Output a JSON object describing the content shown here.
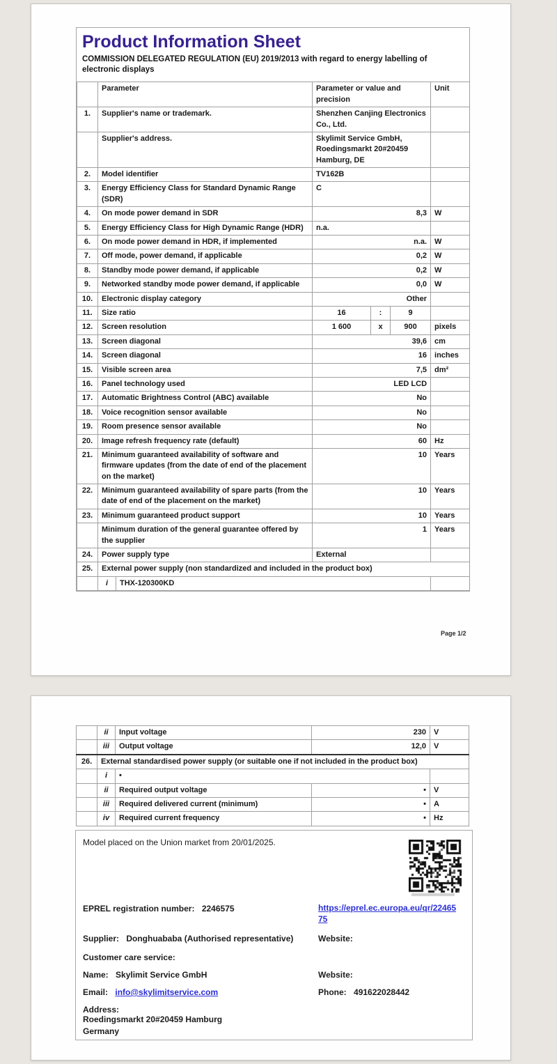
{
  "document": {
    "title": "Product Information Sheet",
    "subtitle": "COMMISSION DELEGATED REGULATION (EU) 2019/2013 with regard to energy labelling of electronic displays",
    "page_footer": "Page 1/2"
  },
  "colors": {
    "title_purple": "#38218f",
    "link_blue": "#2b2fd4",
    "table_border": "#a0a0a0",
    "page_background": "#e9e6e2"
  },
  "table": {
    "headers": {
      "parameter": "Parameter",
      "value": "Parameter or value and precision",
      "unit": "Unit"
    },
    "rows_page1": [
      {
        "num": "1.",
        "param": "Supplier's name or trademark.",
        "value": "Shenzhen Canjing Electronics Co., Ltd.",
        "align": "left",
        "unit": ""
      },
      {
        "num": "",
        "param": "Supplier's address.",
        "value": "Skylimit Service GmbH, Roedingsmarkt 20#20459 Hamburg, DE",
        "align": "left",
        "unit": ""
      },
      {
        "num": "2.",
        "param": "Model identifier",
        "value": "TV162B",
        "align": "left",
        "unit": ""
      },
      {
        "num": "3.",
        "param": "Energy Efficiency Class for Standard Dynamic Range (SDR)",
        "value": "C",
        "align": "left",
        "unit": ""
      },
      {
        "num": "4.",
        "param": "On mode power demand in SDR",
        "value": "8,3",
        "align": "right",
        "unit": "W"
      },
      {
        "num": "5.",
        "param": "Energy Efficiency Class for High Dynamic Range (HDR)",
        "value": "n.a.",
        "align": "left",
        "unit": ""
      },
      {
        "num": "6.",
        "param": "On mode power demand in HDR, if implemented",
        "value": "n.a.",
        "align": "right",
        "unit": "W"
      },
      {
        "num": "7.",
        "param": "Off mode, power demand, if applicable",
        "value": "0,2",
        "align": "right",
        "unit": "W"
      },
      {
        "num": "8.",
        "param": "Standby mode power demand, if applicable",
        "value": "0,2",
        "align": "right",
        "unit": "W"
      },
      {
        "num": "9.",
        "param": "Networked standby mode power demand, if applicable",
        "value": "0,0",
        "align": "right",
        "unit": "W"
      },
      {
        "num": "10.",
        "param": "Electronic display category",
        "value": "Other",
        "align": "right",
        "unit": ""
      },
      {
        "num": "11.",
        "param": "Size ratio",
        "split": [
          "16",
          ":",
          "9"
        ],
        "unit": ""
      },
      {
        "num": "12.",
        "param": "Screen resolution",
        "split": [
          "1 600",
          "x",
          "900"
        ],
        "unit": "pixels"
      },
      {
        "num": "13.",
        "param": "Screen diagonal",
        "value": "39,6",
        "align": "right",
        "unit": "cm"
      },
      {
        "num": "14.",
        "param": "Screen diagonal",
        "value": "16",
        "align": "right",
        "unit": "inches"
      },
      {
        "num": "15.",
        "param": "Visible screen area",
        "value": "7,5",
        "align": "right",
        "unit": "dm²"
      },
      {
        "num": "16.",
        "param": "Panel technology used",
        "value": "LED LCD",
        "align": "right",
        "unit": ""
      },
      {
        "num": "17.",
        "param": "Automatic Brightness Control (ABC) available",
        "value": "No",
        "align": "right",
        "unit": ""
      },
      {
        "num": "18.",
        "param": "Voice recognition sensor available",
        "value": "No",
        "align": "right",
        "unit": ""
      },
      {
        "num": "19.",
        "param": "Room presence sensor available",
        "value": "No",
        "align": "right",
        "unit": ""
      },
      {
        "num": "20.",
        "param": "Image refresh frequency rate (default)",
        "value": "60",
        "align": "right",
        "unit": "Hz"
      },
      {
        "num": "21.",
        "param": "Minimum guaranteed availability of software and firmware updates (from the date of end of the placement on the market)",
        "value": "10",
        "align": "right",
        "unit": "Years"
      },
      {
        "num": "22.",
        "param": "Minimum guaranteed availability of spare parts (from the date of end of the placement on the market)",
        "value": "10",
        "align": "right",
        "unit": "Years"
      },
      {
        "num": "23.",
        "param": "Minimum guaranteed product support",
        "value": "10",
        "align": "right",
        "unit": "Years"
      },
      {
        "num": "",
        "param": "Minimum duration of the general guarantee offered by the supplier",
        "value": "1",
        "align": "right",
        "unit": "Years"
      },
      {
        "num": "24.",
        "param": "Power supply type",
        "value": "External",
        "align": "left",
        "unit": ""
      },
      {
        "num": "25.",
        "span": "External power supply (non standardized and included in the product box)"
      },
      {
        "num": "",
        "sub": "i",
        "merged": true,
        "param": "THX-120300KD",
        "unit": ""
      }
    ],
    "rows_page2": [
      {
        "num": "",
        "numHidden": true,
        "sub": "ii",
        "param": "Input voltage",
        "value": "230",
        "align": "right",
        "unit": "V"
      },
      {
        "num": "",
        "numHidden": true,
        "sub": "iii",
        "param": "Output voltage",
        "value": "12,0",
        "align": "right",
        "unit": "V"
      },
      {
        "num": "26.",
        "darkTop": true,
        "span": "External standardised power supply (or suitable one if not included in the product box)"
      },
      {
        "num": "",
        "sub": "i",
        "darkLeft": true,
        "merged": true,
        "param": "•",
        "unit": ""
      },
      {
        "num": "",
        "sub": "ii",
        "darkLeft": true,
        "param": "Required output voltage",
        "value": "•",
        "align": "right",
        "unit": "V"
      },
      {
        "num": "",
        "sub": "iii",
        "darkLeft": true,
        "param": "Required delivered current (minimum)",
        "value": "•",
        "align": "right",
        "unit": "A"
      },
      {
        "num": "",
        "sub": "iv",
        "darkLeft": true,
        "param": "Required current frequency",
        "value": "•",
        "align": "right",
        "unit": "Hz"
      }
    ]
  },
  "registration": {
    "market_date_line": "Model placed on the Union market from 20/01/2025.",
    "eprel_label": "EPREL registration number:",
    "eprel_number": "2246575",
    "eprel_url": "https://eprel.ec.europa.eu/qr/2246575",
    "supplier_label": "Supplier:",
    "supplier_value": "Donghuababa (Authorised representative)",
    "website_label": "Website:",
    "customer_care_heading": "Customer care service:",
    "name_label": "Name:",
    "name_value": "Skylimit Service GmbH",
    "email_label": "Email:",
    "email_value": "info@skylimitservice.com",
    "phone_label": "Phone:",
    "phone_value": "491622028442",
    "address_label": "Address:",
    "address_line1": "Roedingsmarkt 20#20459 Hamburg",
    "address_line2": "Germany"
  }
}
